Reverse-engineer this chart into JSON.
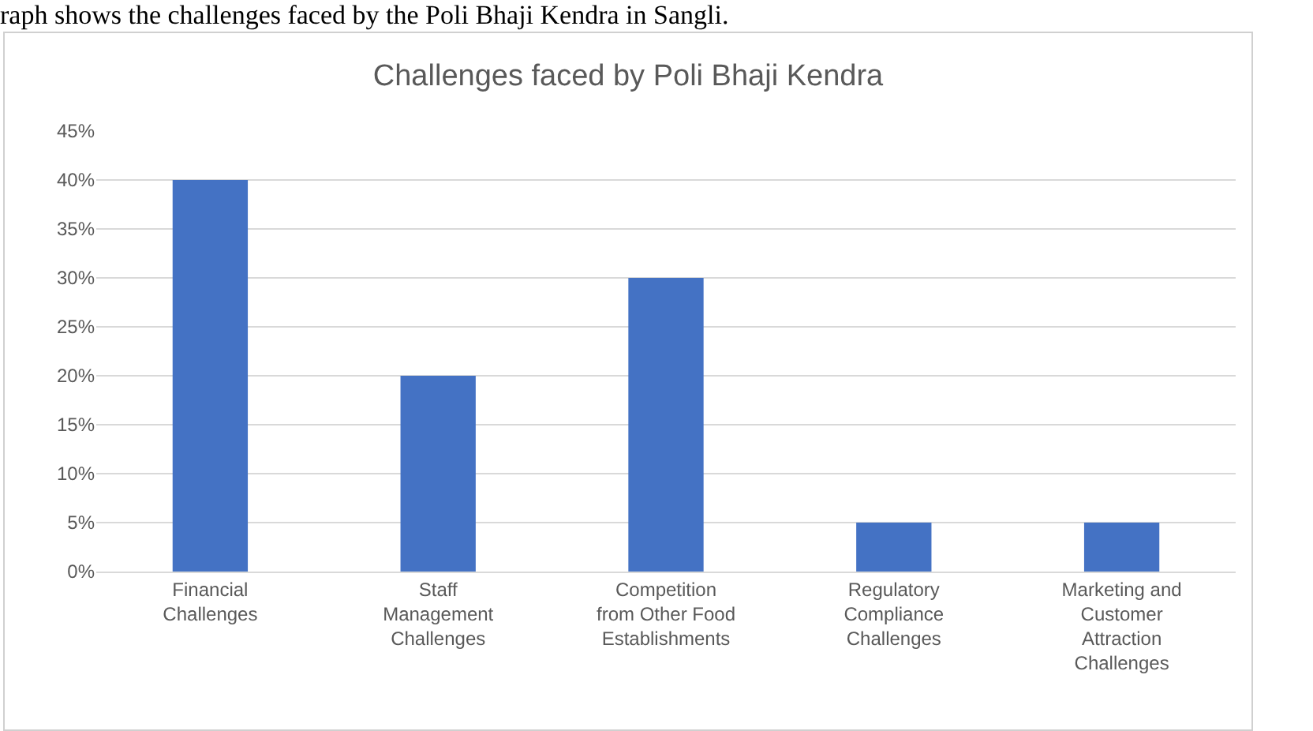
{
  "chart_data": {
    "type": "bar",
    "title": "Challenges faced by Poli Bhaji Kendra",
    "annotations": [
      "raph shows the challenges faced by the Poli Bhaji Kendra in Sangli."
    ],
    "categories": [
      "Financial\nChallenges",
      "Staff\nManagement\nChallenges",
      "Competition\nfrom Other Food\nEstablishments",
      "Regulatory\nCompliance\nChallenges",
      "Marketing and\nCustomer\nAttraction\nChallenges"
    ],
    "values": [
      40,
      20,
      30,
      5,
      5
    ],
    "color": "#4472c4",
    "ylim": [
      0,
      45
    ],
    "yticks": [
      {
        "value": 0,
        "label": "0%"
      },
      {
        "value": 5,
        "label": "5%"
      },
      {
        "value": 10,
        "label": "10%"
      },
      {
        "value": 15,
        "label": "15%"
      },
      {
        "value": 20,
        "label": "20%"
      },
      {
        "value": 25,
        "label": "25%"
      },
      {
        "value": 30,
        "label": "30%"
      },
      {
        "value": 35,
        "label": "35%"
      },
      {
        "value": 40,
        "label": "40%"
      },
      {
        "value": 45,
        "label": "45%"
      }
    ],
    "grid": "y"
  }
}
